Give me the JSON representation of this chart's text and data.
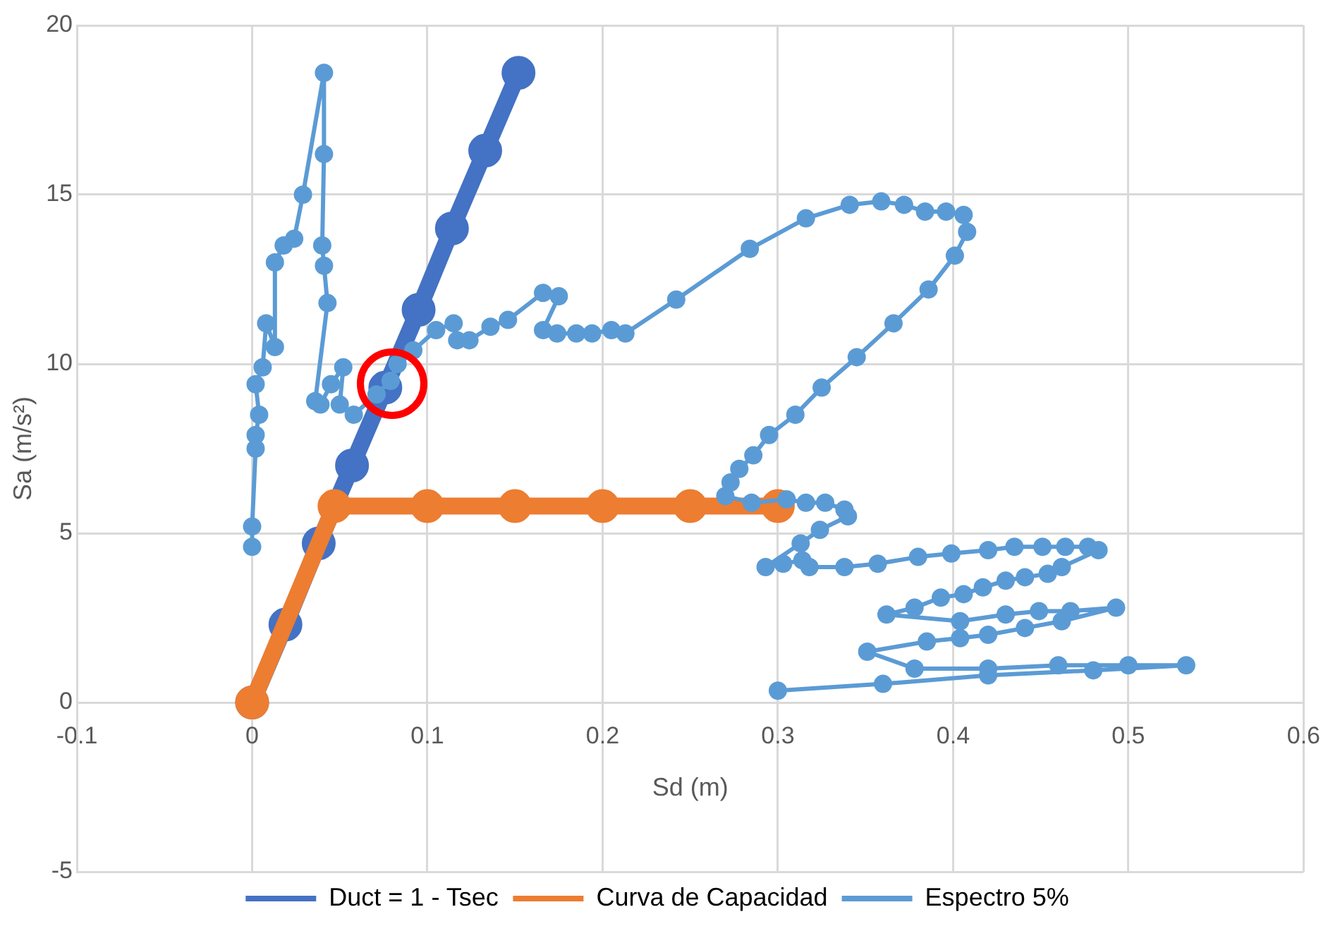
{
  "chart_data": {
    "type": "line",
    "xlabel": "Sd (m)",
    "ylabel": "Sa (m/s²)",
    "xlim": [
      -0.1,
      0.6
    ],
    "xticks": [
      -0.1,
      0,
      0.1,
      0.2,
      0.3,
      0.4,
      0.5,
      0.6
    ],
    "ylim": [
      -5,
      20
    ],
    "yticks": [
      -5,
      0,
      5,
      10,
      15,
      20
    ],
    "grid": true,
    "legend": "bottom",
    "marker": "circle",
    "series": [
      {
        "name": "Duct = 1 - Tsec",
        "color": "#4472c4",
        "x": [
          0,
          0.019,
          0.038,
          0.057,
          0.076,
          0.095,
          0.114,
          0.133,
          0.152
        ],
        "values": [
          0,
          2.3,
          4.7,
          7.0,
          9.3,
          11.6,
          14.0,
          16.3,
          18.6
        ]
      },
      {
        "name": "Curva de Capacidad",
        "color": "#ed7d31",
        "x": [
          0,
          0.047,
          0.1,
          0.15,
          0.2,
          0.25,
          0.3
        ],
        "values": [
          0,
          5.8,
          5.8,
          5.8,
          5.8,
          5.8,
          5.8
        ]
      },
      {
        "name": "Espectro 5%",
        "color": "#5b9bd5",
        "x": [
          0,
          0,
          0.002,
          0.002,
          0.004,
          0.002,
          0.006,
          0.008,
          0.013,
          0.013,
          0.018,
          0.024,
          0.029,
          0.041,
          0.041,
          0.04,
          0.041,
          0.043,
          0.036,
          0.039,
          0.045,
          0.052,
          0.05,
          0.058,
          0.071,
          0.079,
          0.083,
          0.092,
          0.105,
          0.115,
          0.117,
          0.124,
          0.136,
          0.146,
          0.166,
          0.175,
          0.166,
          0.174,
          0.185,
          0.194,
          0.205,
          0.213,
          0.242,
          0.284,
          0.316,
          0.341,
          0.359,
          0.372,
          0.384,
          0.396,
          0.406,
          0.408,
          0.401,
          0.386,
          0.366,
          0.345,
          0.325,
          0.31,
          0.295,
          0.286,
          0.278,
          0.273,
          0.27,
          0.285,
          0.305,
          0.316,
          0.327,
          0.338,
          0.34,
          0.324,
          0.313,
          0.293,
          0.303,
          0.314,
          0.318,
          0.338,
          0.357,
          0.38,
          0.399,
          0.42,
          0.435,
          0.451,
          0.464,
          0.477,
          0.483,
          0.462,
          0.454,
          0.441,
          0.43,
          0.417,
          0.406,
          0.393,
          0.378,
          0.362,
          0.404,
          0.43,
          0.449,
          0.467,
          0.493,
          0.462,
          0.441,
          0.42,
          0.404,
          0.385,
          0.351,
          0.378,
          0.42,
          0.46,
          0.5,
          0.533,
          0.48,
          0.42,
          0.36,
          0.3
        ],
        "values": [
          4.6,
          5.2,
          7.5,
          7.9,
          8.5,
          9.4,
          9.9,
          11.2,
          10.5,
          13.0,
          13.5,
          13.7,
          15.0,
          18.6,
          16.2,
          13.5,
          12.9,
          11.8,
          8.9,
          8.8,
          9.4,
          9.9,
          8.8,
          8.5,
          9.1,
          9.5,
          10.0,
          10.4,
          11.0,
          11.2,
          10.7,
          10.7,
          11.1,
          11.3,
          12.1,
          12.0,
          11.0,
          10.9,
          10.9,
          10.9,
          11.0,
          10.9,
          11.9,
          13.4,
          14.3,
          14.7,
          14.8,
          14.7,
          14.5,
          14.5,
          14.4,
          13.9,
          13.2,
          12.2,
          11.2,
          10.2,
          9.3,
          8.5,
          7.9,
          7.3,
          6.9,
          6.5,
          6.1,
          5.9,
          6.0,
          5.9,
          5.9,
          5.7,
          5.5,
          5.1,
          4.7,
          4.0,
          4.1,
          4.2,
          4.0,
          4.0,
          4.1,
          4.3,
          4.4,
          4.5,
          4.6,
          4.6,
          4.6,
          4.6,
          4.5,
          4.0,
          3.8,
          3.7,
          3.6,
          3.4,
          3.2,
          3.1,
          2.8,
          2.6,
          2.4,
          2.6,
          2.7,
          2.7,
          2.8,
          2.4,
          2.2,
          2.0,
          1.9,
          1.8,
          1.5,
          1.0,
          1.0,
          1.1,
          1.1,
          1.1,
          0.95,
          0.8,
          0.55,
          0.35
        ]
      }
    ]
  }
}
